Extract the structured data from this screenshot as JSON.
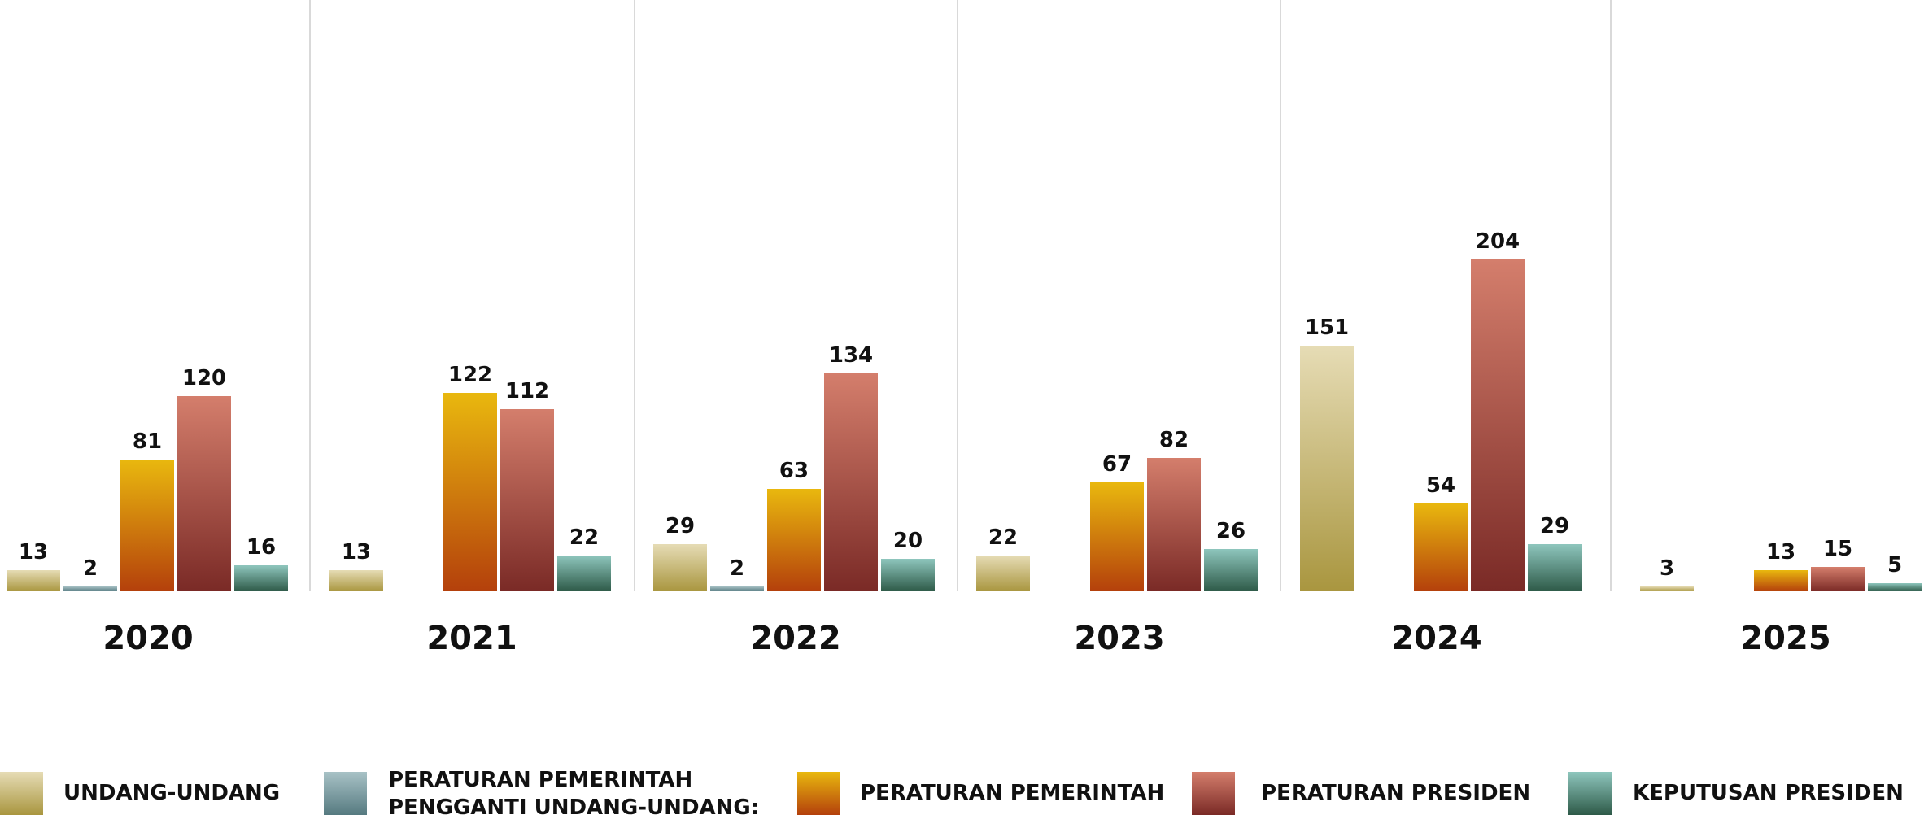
{
  "chart_data": {
    "type": "bar",
    "categories": [
      "2020",
      "2021",
      "2022",
      "2023",
      "2024",
      "2025"
    ],
    "series": [
      {
        "name": "UNDANG-UNDANG",
        "values": [
          13,
          13,
          29,
          22,
          151,
          3
        ],
        "color": "#c9b56e"
      },
      {
        "name": "PERATURAN PEMERINTAH PENGGANTI UNDANG-UNDANG:",
        "values": [
          2,
          null,
          2,
          null,
          null,
          null
        ],
        "color": "#7f9ea5"
      },
      {
        "name": "PERATURAN PEMERINTAH",
        "values": [
          81,
          122,
          63,
          67,
          54,
          13
        ],
        "color": "#e0a10f"
      },
      {
        "name": "PERATURAN PRESIDEN",
        "values": [
          120,
          112,
          134,
          82,
          204,
          15
        ],
        "color": "#c46a5c"
      },
      {
        "name": "KEPUTUSAN PRESIDEN",
        "values": [
          16,
          22,
          20,
          26,
          29,
          5
        ],
        "color": "#5f9f92"
      }
    ],
    "ylim": [
      0,
      210
    ],
    "grid": false,
    "legend_position": "bottom"
  }
}
